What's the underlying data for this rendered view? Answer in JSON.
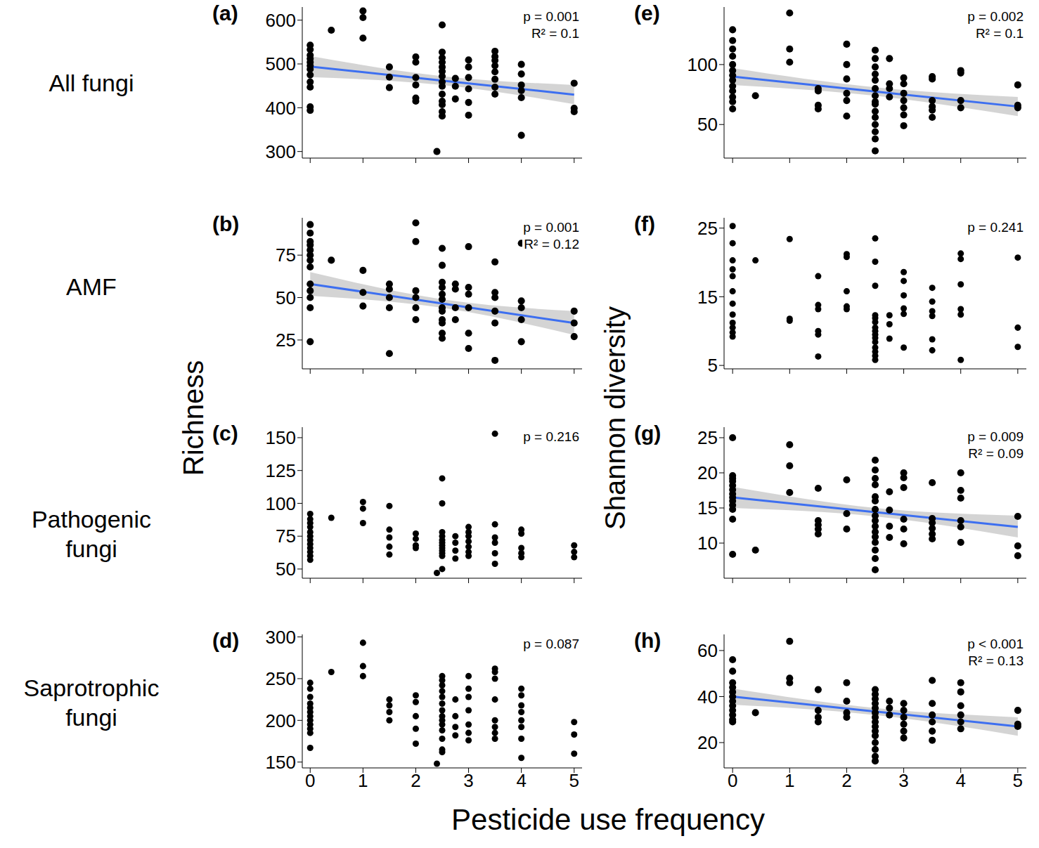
{
  "figure": {
    "row_labels": [
      "All fungi",
      "AMF",
      "Pathogenic fungi",
      "Saprotrophic fungi"
    ],
    "ylabels": [
      "Richness",
      "Shannon diversity"
    ],
    "xlabel": "Pesticide use frequency"
  },
  "chart_data": [
    {
      "type": "scatter",
      "title": "(a)",
      "color": "#000000",
      "marker": "circle",
      "tick_labels": "y",
      "xlim": [
        -0.15,
        5.15
      ],
      "xticks": [
        0,
        1,
        2,
        3,
        4,
        5
      ],
      "ylim": [
        285,
        630
      ],
      "yticks": [
        300,
        400,
        500,
        600
      ],
      "annotations": [
        "p = 0.001",
        "R² = 0.1"
      ],
      "x": [
        0,
        0,
        0,
        0,
        0,
        0,
        0,
        0,
        0,
        0,
        0,
        0,
        0.4,
        1,
        1,
        1,
        1.5,
        1.5,
        1.5,
        2,
        2,
        2,
        2,
        2,
        2,
        2.4,
        2.5,
        2.5,
        2.5,
        2.5,
        2.5,
        2.5,
        2.5,
        2.5,
        2.5,
        2.5,
        2.5,
        2.5,
        2.5,
        2.5,
        2.75,
        2.75,
        2.75,
        3,
        3,
        3,
        3,
        3,
        3,
        3.5,
        3.5,
        3.5,
        3.5,
        3.5,
        3.5,
        3.5,
        3.5,
        4,
        4,
        4,
        4,
        4,
        4,
        5,
        5,
        5
      ],
      "y": [
        543,
        533,
        520,
        512,
        504,
        496,
        488,
        475,
        459,
        447,
        402,
        394,
        577,
        621,
        606,
        559,
        493,
        470,
        446,
        516,
        504,
        469,
        452,
        422,
        415,
        300,
        589,
        527,
        514,
        504,
        493,
        483,
        472,
        459,
        449,
        431,
        415,
        407,
        391,
        381,
        467,
        449,
        420,
        509,
        493,
        469,
        443,
        412,
        383,
        529,
        517,
        508,
        496,
        482,
        465,
        447,
        431,
        499,
        477,
        452,
        439,
        423,
        337,
        456,
        399,
        391
      ],
      "fit": {
        "x": [
          0,
          2.5,
          5
        ],
        "y": [
          494,
          462,
          430
        ],
        "lower": [
          470,
          452,
          408
        ],
        "upper": [
          518,
          472,
          452
        ],
        "color": "#3d6ff0"
      }
    },
    {
      "type": "scatter",
      "title": "(b)",
      "color": "#000000",
      "marker": "circle",
      "tick_labels": "y",
      "xlim": [
        -0.15,
        5.15
      ],
      "xticks": [
        0,
        1,
        2,
        3,
        4,
        5
      ],
      "ylim": [
        8,
        97
      ],
      "yticks": [
        25,
        50,
        75
      ],
      "annotations": [
        "p = 0.001",
        "R² = 0.12"
      ],
      "x": [
        0,
        0,
        0,
        0,
        0,
        0,
        0,
        0,
        0,
        0,
        0,
        0,
        0,
        0.4,
        1,
        1,
        1,
        1.5,
        1.5,
        1.5,
        1.5,
        1.5,
        2,
        2,
        2,
        2,
        2,
        2,
        2.5,
        2.5,
        2.5,
        2.5,
        2.5,
        2.5,
        2.5,
        2.5,
        2.5,
        2.5,
        2.5,
        2.5,
        2.75,
        2.75,
        2.75,
        2.75,
        3,
        3,
        3,
        3,
        3,
        3,
        3.5,
        3.5,
        3.5,
        3.5,
        3.5,
        3.5,
        4,
        4,
        4,
        4,
        4,
        5,
        5,
        5
      ],
      "y": [
        93,
        88,
        83,
        81,
        78,
        75,
        72,
        68,
        58,
        54,
        50,
        44,
        24,
        72,
        66,
        53,
        45,
        58,
        55,
        50,
        44,
        17,
        94,
        83,
        54,
        50,
        44,
        37,
        79,
        69,
        59,
        56,
        52,
        49,
        44,
        42,
        37,
        35,
        29,
        26,
        58,
        55,
        44,
        37,
        80,
        56,
        52,
        44,
        29,
        20,
        71,
        53,
        50,
        42,
        35,
        13,
        82,
        48,
        44,
        37,
        24,
        42,
        35,
        27
      ],
      "fit": {
        "x": [
          0,
          2.5,
          5
        ],
        "y": [
          58,
          46.5,
          35
        ],
        "lower": [
          51,
          44,
          28
        ],
        "upper": [
          65,
          49,
          42
        ],
        "color": "#3d6ff0"
      }
    },
    {
      "type": "scatter",
      "title": "(c)",
      "color": "#000000",
      "marker": "circle",
      "tick_labels": "y",
      "xlim": [
        -0.15,
        5.15
      ],
      "xticks": [
        0,
        1,
        2,
        3,
        4,
        5
      ],
      "ylim": [
        43,
        158
      ],
      "yticks": [
        50,
        75,
        100,
        125,
        150
      ],
      "annotations": [
        "p = 0.216"
      ],
      "x": [
        0,
        0,
        0,
        0,
        0,
        0,
        0,
        0,
        0,
        0,
        0,
        0,
        0.4,
        1,
        1,
        1,
        1.5,
        1.5,
        1.5,
        1.5,
        1.5,
        2,
        2,
        2,
        2,
        2.4,
        2.5,
        2.5,
        2.5,
        2.5,
        2.5,
        2.5,
        2.5,
        2.5,
        2.5,
        2.5,
        2.5,
        2.5,
        2.75,
        2.75,
        2.75,
        2.75,
        3,
        3,
        3,
        3,
        3,
        3,
        3,
        3.5,
        3.5,
        3.5,
        3.5,
        3.5,
        3.5,
        4,
        4,
        4,
        4,
        4,
        5,
        5,
        5
      ],
      "y": [
        92,
        88,
        85,
        82,
        78,
        75,
        72,
        69,
        66,
        63,
        60,
        57,
        89,
        101,
        96,
        85,
        98,
        80,
        74,
        67,
        61,
        77,
        73,
        68,
        66,
        47,
        119,
        100,
        78,
        75,
        72,
        70,
        68,
        66,
        64,
        62,
        60,
        50,
        75,
        70,
        64,
        58,
        82,
        78,
        75,
        71,
        67,
        63,
        60,
        153,
        84,
        74,
        70,
        62,
        54,
        80,
        77,
        66,
        62,
        59,
        68,
        63,
        59
      ]
    },
    {
      "type": "scatter",
      "title": "(d)",
      "color": "#000000",
      "marker": "circle",
      "xlim": [
        -0.15,
        5.15
      ],
      "xticks": [
        0,
        1,
        2,
        3,
        4,
        5
      ],
      "ylim": [
        143,
        303
      ],
      "yticks": [
        150,
        200,
        250,
        300
      ],
      "annotations": [
        "p = 0.087"
      ],
      "x": [
        0,
        0,
        0,
        0,
        0,
        0,
        0,
        0,
        0,
        0,
        0,
        0,
        0.4,
        1,
        1,
        1,
        1.5,
        1.5,
        1.5,
        1.5,
        2,
        2,
        2,
        2,
        2,
        2.4,
        2.5,
        2.5,
        2.5,
        2.5,
        2.5,
        2.5,
        2.5,
        2.5,
        2.5,
        2.5,
        2.5,
        2.5,
        2.5,
        2.5,
        2.75,
        2.75,
        2.75,
        2.75,
        3,
        3,
        3,
        3,
        3,
        3,
        3,
        3.5,
        3.5,
        3.5,
        3.5,
        3.5,
        3.5,
        3.5,
        3.5,
        4,
        4,
        4,
        4,
        4,
        4,
        4,
        4,
        5,
        5,
        5
      ],
      "y": [
        245,
        238,
        228,
        220,
        215,
        210,
        205,
        200,
        195,
        190,
        185,
        167,
        258,
        293,
        265,
        253,
        225,
        218,
        210,
        200,
        230,
        222,
        205,
        190,
        172,
        148,
        253,
        248,
        242,
        235,
        228,
        220,
        212,
        205,
        200,
        195,
        188,
        178,
        165,
        162,
        225,
        205,
        192,
        182,
        253,
        238,
        228,
        212,
        195,
        185,
        176,
        262,
        258,
        250,
        225,
        200,
        192,
        185,
        178,
        238,
        230,
        218,
        210,
        200,
        192,
        178,
        155,
        198,
        183,
        160
      ]
    },
    {
      "type": "scatter",
      "title": "(e)",
      "color": "#000000",
      "marker": "circle",
      "tick_labels": "y",
      "xlim": [
        -0.15,
        5.15
      ],
      "xticks": [
        0,
        1,
        2,
        3,
        4,
        5
      ],
      "ylim": [
        22,
        148
      ],
      "yticks": [
        50,
        100
      ],
      "annotations": [
        "p = 0.002",
        "R² = 0.1"
      ],
      "x": [
        0,
        0,
        0,
        0,
        0,
        0,
        0,
        0,
        0,
        0,
        0,
        0,
        0,
        0.4,
        1,
        1,
        1,
        1.5,
        1.5,
        1.5,
        1.5,
        2,
        2,
        2,
        2,
        2,
        2,
        2.5,
        2.5,
        2.5,
        2.5,
        2.5,
        2.5,
        2.5,
        2.5,
        2.5,
        2.5,
        2.5,
        2.5,
        2.5,
        2.5,
        2.5,
        2.75,
        2.75,
        2.75,
        2.75,
        3,
        3,
        3,
        3,
        3,
        3,
        3,
        3.5,
        3.5,
        3.5,
        3.5,
        3.5,
        3.5,
        4,
        4,
        4,
        4,
        5,
        5,
        5
      ],
      "y": [
        129,
        120,
        113,
        107,
        100,
        95,
        91,
        87,
        82,
        78,
        73,
        69,
        63,
        74,
        143,
        113,
        102,
        80,
        78,
        66,
        63,
        117,
        100,
        88,
        76,
        70,
        57,
        112,
        105,
        98,
        92,
        87,
        80,
        74,
        69,
        67,
        61,
        56,
        50,
        44,
        38,
        28,
        105,
        84,
        80,
        73,
        89,
        84,
        76,
        70,
        64,
        58,
        49,
        90,
        88,
        70,
        65,
        62,
        56,
        95,
        93,
        70,
        64,
        83,
        66,
        64
      ],
      "fit": {
        "x": [
          0,
          2.5,
          5
        ],
        "y": [
          90,
          77.5,
          65
        ],
        "lower": [
          83,
          74,
          57
        ],
        "upper": [
          97,
          81,
          73
        ],
        "color": "#3d6ff0"
      }
    },
    {
      "type": "scatter",
      "title": "(f)",
      "color": "#000000",
      "marker": "circle",
      "tick_labels": "y",
      "xlim": [
        -0.15,
        5.15
      ],
      "xticks": [
        0,
        1,
        2,
        3,
        4,
        5
      ],
      "ylim": [
        4.5,
        26.5
      ],
      "yticks": [
        5,
        15,
        25
      ],
      "annotations": [
        "p = 0.241"
      ],
      "x": [
        0,
        0,
        0,
        0,
        0,
        0,
        0,
        0,
        0,
        0,
        0,
        0,
        0.4,
        1,
        1,
        1,
        1.5,
        1.5,
        1.5,
        1.5,
        1.5,
        1.5,
        2,
        2,
        2,
        2,
        2,
        2.5,
        2.5,
        2.5,
        2.5,
        2.5,
        2.5,
        2.5,
        2.5,
        2.5,
        2.5,
        2.5,
        2.5,
        2.5,
        2.5,
        2.5,
        2.75,
        2.75,
        2.75,
        3,
        3,
        3,
        3,
        3,
        3,
        3.5,
        3.5,
        3.5,
        3.5,
        3.5,
        3.5,
        4,
        4,
        4,
        4,
        4,
        4,
        5,
        5,
        5
      ],
      "y": [
        25.3,
        22.8,
        20.3,
        19,
        18,
        15.8,
        14,
        12.4,
        11.2,
        10.5,
        9.8,
        9.2,
        20.3,
        23.4,
        11.8,
        11.5,
        18,
        13.8,
        13.2,
        10,
        9.5,
        6.3,
        21.2,
        20.8,
        15.8,
        13.6,
        13.2,
        23.5,
        20.1,
        16.6,
        12.3,
        11.9,
        11.3,
        10.5,
        10,
        9.5,
        9,
        8.4,
        7.6,
        7,
        6.4,
        5.8,
        12.3,
        11,
        8.9,
        18.6,
        17.3,
        15.2,
        13.3,
        12.5,
        7.6,
        16.3,
        14.3,
        12.9,
        12.2,
        8.8,
        7.2,
        21.3,
        20.5,
        16.8,
        13.2,
        12.4,
        5.8,
        20.7,
        10.5,
        7.7
      ]
    },
    {
      "type": "scatter",
      "title": "(g)",
      "color": "#000000",
      "marker": "circle",
      "tick_labels": "y",
      "xlim": [
        -0.15,
        5.15
      ],
      "xticks": [
        0,
        1,
        2,
        3,
        4,
        5
      ],
      "ylim": [
        5,
        26.5
      ],
      "yticks": [
        10,
        15,
        20,
        25
      ],
      "annotations": [
        "p = 0.009",
        "R² = 0.09"
      ],
      "x": [
        0,
        0,
        0,
        0,
        0,
        0,
        0,
        0,
        0,
        0,
        0,
        0,
        0,
        0.4,
        1,
        1,
        1,
        1.5,
        1.5,
        1.5,
        1.5,
        1.5,
        2,
        2,
        2,
        2.5,
        2.5,
        2.5,
        2.5,
        2.5,
        2.5,
        2.5,
        2.5,
        2.5,
        2.5,
        2.5,
        2.5,
        2.5,
        2.5,
        2.5,
        2.5,
        2.75,
        2.75,
        2.75,
        2.75,
        3,
        3,
        3,
        3,
        3,
        3,
        3.5,
        3.5,
        3.5,
        3.5,
        3.5,
        3.5,
        4,
        4,
        4,
        4,
        4,
        4,
        5,
        5,
        5
      ],
      "y": [
        25,
        19.6,
        19.2,
        18.8,
        18.2,
        17.6,
        17,
        16.5,
        16,
        15.4,
        14.8,
        13.4,
        8.4,
        9,
        24,
        21,
        17.2,
        17.8,
        13.2,
        12.6,
        12,
        11.3,
        19,
        14.2,
        12,
        21.8,
        20.4,
        19.2,
        18.3,
        16.6,
        16,
        14.8,
        13.9,
        13.2,
        12.4,
        11.6,
        10.9,
        10.1,
        9,
        7.8,
        6.2,
        17.3,
        14.7,
        12.4,
        10.8,
        20,
        19.3,
        17.9,
        13.4,
        12,
        9.9,
        18.6,
        13.5,
        12.9,
        12.1,
        11.3,
        10.6,
        20,
        17.5,
        16.4,
        13.2,
        12.3,
        10.1,
        13.8,
        9.6,
        8.2
      ],
      "fit": {
        "x": [
          0,
          2.5,
          5
        ],
        "y": [
          16.5,
          14.4,
          12.3
        ],
        "lower": [
          15,
          13.8,
          10.8
        ],
        "upper": [
          18,
          15,
          13.9
        ],
        "color": "#3d6ff0"
      }
    },
    {
      "type": "scatter",
      "title": "(h)",
      "color": "#000000",
      "marker": "circle",
      "xlim": [
        -0.15,
        5.15
      ],
      "xticks": [
        0,
        1,
        2,
        3,
        4,
        5
      ],
      "ylim": [
        9,
        67
      ],
      "yticks": [
        20,
        40,
        60
      ],
      "annotations": [
        "p < 0.001",
        "R² = 0.13"
      ],
      "x": [
        0,
        0,
        0,
        0,
        0,
        0,
        0,
        0,
        0,
        0,
        0,
        0,
        0.4,
        1,
        1,
        1,
        1.5,
        1.5,
        1.5,
        1.5,
        2,
        2,
        2,
        2,
        2.5,
        2.5,
        2.5,
        2.5,
        2.5,
        2.5,
        2.5,
        2.5,
        2.5,
        2.5,
        2.5,
        2.5,
        2.5,
        2.5,
        2.5,
        2.75,
        2.75,
        2.75,
        3,
        3,
        3,
        3,
        3,
        3,
        3.5,
        3.5,
        3.5,
        3.5,
        3.5,
        3.5,
        4,
        4,
        4,
        4,
        4,
        4,
        5,
        5,
        5
      ],
      "y": [
        56,
        51,
        46,
        44,
        42,
        40,
        38,
        36,
        34,
        32,
        30,
        29,
        33,
        64,
        48,
        46,
        43,
        34,
        31,
        29,
        46,
        38,
        33,
        31,
        43,
        41,
        39,
        37,
        35,
        33,
        31,
        29,
        27,
        25,
        23,
        20,
        17,
        14,
        12,
        38,
        35,
        32,
        37,
        34,
        31,
        28,
        25,
        22,
        47,
        37,
        32,
        29,
        25,
        21,
        46,
        42,
        36,
        32,
        29,
        26,
        34,
        28,
        27
      ],
      "fit": {
        "x": [
          0,
          2.5,
          5
        ],
        "y": [
          40,
          33.5,
          27
        ],
        "lower": [
          36.5,
          32,
          23
        ],
        "upper": [
          43.5,
          35,
          31
        ],
        "color": "#3d6ff0"
      }
    }
  ]
}
